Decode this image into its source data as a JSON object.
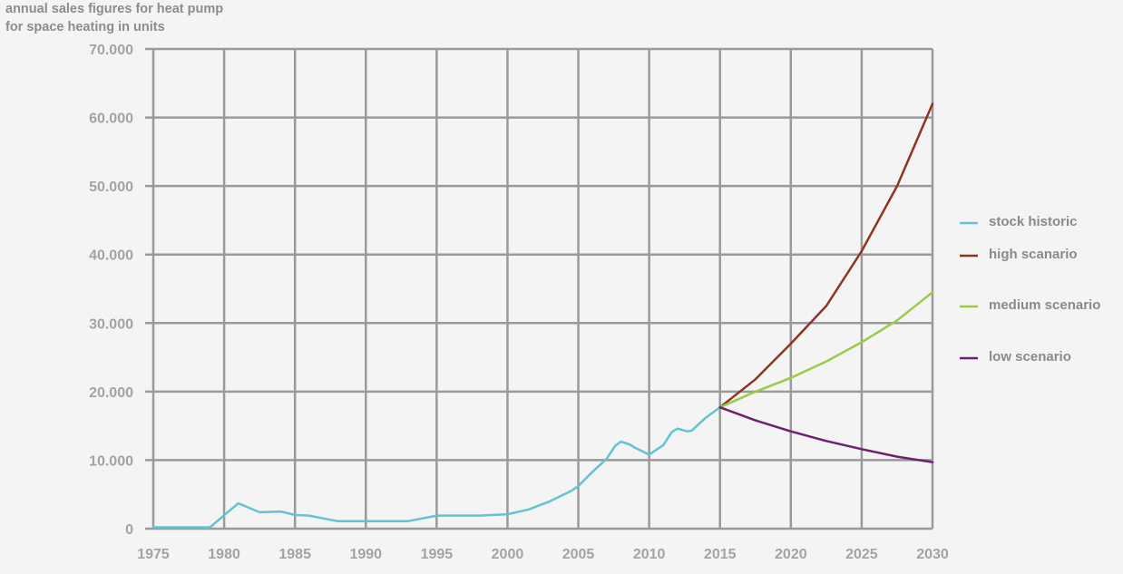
{
  "chart_data": {
    "type": "line",
    "title_lines": [
      "annual sales figures for heat pump",
      "for space heating in units"
    ],
    "xlabel": "",
    "ylabel": "",
    "xlim": [
      1975,
      2030
    ],
    "ylim": [
      0,
      70000
    ],
    "x_ticks": [
      "1975",
      "1980",
      "1985",
      "1990",
      "1995",
      "2000",
      "2005",
      "2010",
      "2015",
      "2020",
      "2025",
      "2030"
    ],
    "y_ticks": [
      "0",
      "10.000",
      "20.000",
      "30.000",
      "40.000",
      "50.000",
      "60.000",
      "70.000"
    ],
    "grid": true,
    "legend_position": "right",
    "series": [
      {
        "name": "stock historic",
        "color": "#62c3d1",
        "points": [
          [
            1975,
            200
          ],
          [
            1979,
            200
          ],
          [
            1981,
            3700
          ],
          [
            1982.5,
            2400
          ],
          [
            1984,
            2500
          ],
          [
            1985,
            2000
          ],
          [
            1986,
            1900
          ],
          [
            1988,
            1100
          ],
          [
            1990,
            1100
          ],
          [
            1993,
            1100
          ],
          [
            1995,
            1900
          ],
          [
            1998,
            1900
          ],
          [
            2000,
            2100
          ],
          [
            2001.5,
            2800
          ],
          [
            2003,
            4000
          ],
          [
            2004.5,
            5500
          ],
          [
            2005,
            6200
          ],
          [
            2006,
            8300
          ],
          [
            2007,
            10200
          ],
          [
            2007.6,
            12100
          ],
          [
            2008,
            12700
          ],
          [
            2008.6,
            12300
          ],
          [
            2009,
            11800
          ],
          [
            2010,
            10800
          ],
          [
            2011,
            12200
          ],
          [
            2011.6,
            14100
          ],
          [
            2012,
            14600
          ],
          [
            2012.7,
            14200
          ],
          [
            2013,
            14300
          ],
          [
            2014,
            16200
          ],
          [
            2015,
            17700
          ]
        ]
      },
      {
        "name": "high scanario",
        "color": "#8e3421",
        "points": [
          [
            2015,
            17700
          ],
          [
            2017.5,
            21800
          ],
          [
            2020,
            27000
          ],
          [
            2022.5,
            32500
          ],
          [
            2025,
            40500
          ],
          [
            2027.5,
            50000
          ],
          [
            2030,
            62000
          ]
        ]
      },
      {
        "name": "medium scenario",
        "color": "#9acb48",
        "points": [
          [
            2015,
            17700
          ],
          [
            2017.5,
            20000
          ],
          [
            2020,
            22000
          ],
          [
            2022.5,
            24400
          ],
          [
            2025,
            27200
          ],
          [
            2027.5,
            30400
          ],
          [
            2030,
            34500
          ]
        ]
      },
      {
        "name": "low scenario",
        "color": "#6e1f70",
        "points": [
          [
            2015,
            17700
          ],
          [
            2017.5,
            15800
          ],
          [
            2020,
            14200
          ],
          [
            2022.5,
            12800
          ],
          [
            2025,
            11600
          ],
          [
            2027.5,
            10500
          ],
          [
            2030,
            9700
          ]
        ]
      }
    ]
  }
}
